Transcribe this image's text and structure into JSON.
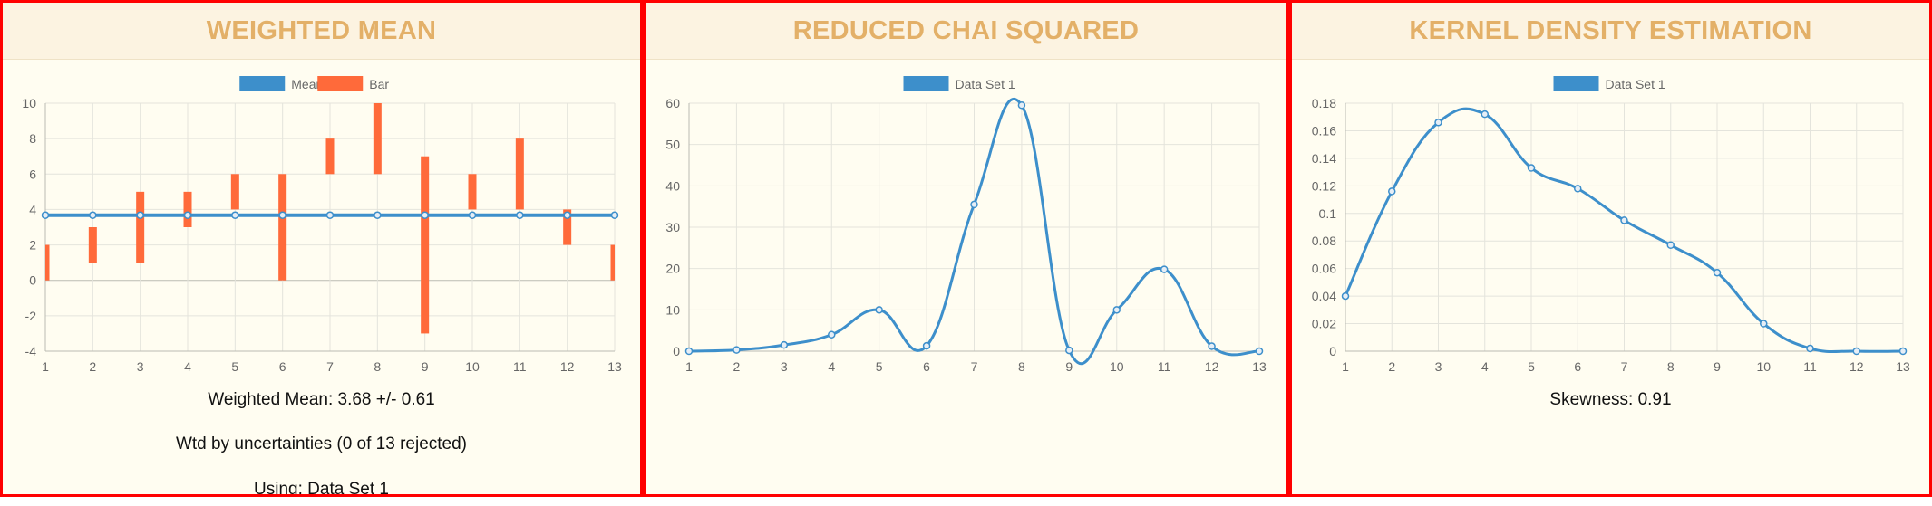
{
  "colors": {
    "line": "#3d8fcb",
    "bar": "#ff6a3a",
    "title": "#e3b068",
    "grid": "#e4e4dc",
    "tick": "#666666",
    "panel_border": "#ff0000"
  },
  "panels": [
    {
      "title": "WEIGHTED MEAN",
      "captions": [
        "Weighted Mean: 3.68 +/- 0.61",
        "Wtd by uncertainties (0 of 13 rejected)",
        "Using: Data Set 1"
      ]
    },
    {
      "title": "REDUCED CHAI SQUARED",
      "captions": []
    },
    {
      "title": "KERNEL DENSITY ESTIMATION",
      "captions": [
        "Skewness: 0.91"
      ]
    }
  ],
  "chart_data": [
    {
      "type": "bar",
      "legend": [
        "Mean",
        "Bar"
      ],
      "legend_position": "top",
      "grid": true,
      "categories": [
        "1",
        "2",
        "3",
        "4",
        "5",
        "6",
        "7",
        "8",
        "9",
        "10",
        "11",
        "12",
        "13"
      ],
      "ylim": [
        -4,
        10
      ],
      "yticks": [
        "10",
        "8",
        "6",
        "4",
        "2",
        "0",
        "-2",
        "-4"
      ],
      "series": [
        {
          "name": "Mean",
          "type": "line",
          "values": [
            3.68,
            3.68,
            3.68,
            3.68,
            3.68,
            3.68,
            3.68,
            3.68,
            3.68,
            3.68,
            3.68,
            3.68,
            3.68
          ]
        },
        {
          "name": "Bar",
          "type": "floating-bar",
          "ranges": [
            [
              0,
              2
            ],
            [
              1,
              3
            ],
            [
              1,
              5
            ],
            [
              3,
              5
            ],
            [
              4,
              6
            ],
            [
              0,
              6
            ],
            [
              6,
              8
            ],
            [
              6,
              10
            ],
            [
              -3,
              7
            ],
            [
              4,
              6
            ],
            [
              4,
              8
            ],
            [
              2,
              4
            ],
            [
              0,
              2
            ]
          ]
        }
      ]
    },
    {
      "type": "line",
      "legend": [
        "Data Set 1"
      ],
      "legend_position": "top",
      "grid": true,
      "categories": [
        "1",
        "2",
        "3",
        "4",
        "5",
        "6",
        "7",
        "8",
        "9",
        "10",
        "11",
        "12",
        "13"
      ],
      "ylim": [
        0,
        60
      ],
      "yticks": [
        "60",
        "50",
        "40",
        "30",
        "20",
        "10",
        "0"
      ],
      "series": [
        {
          "name": "Data Set 1",
          "values": [
            0,
            0.3,
            1.5,
            4,
            10,
            1.3,
            35.5,
            59.5,
            0.2,
            10,
            19.8,
            1.2,
            0
          ]
        }
      ]
    },
    {
      "type": "line",
      "legend": [
        "Data Set 1"
      ],
      "legend_position": "top",
      "grid": true,
      "categories": [
        "1",
        "2",
        "3",
        "4",
        "5",
        "6",
        "7",
        "8",
        "9",
        "10",
        "11",
        "12",
        "13"
      ],
      "ylim": [
        0,
        0.18
      ],
      "yticks": [
        "0.18",
        "0.16",
        "0.14",
        "0.12",
        "0.1",
        "0.08",
        "0.06",
        "0.04",
        "0.02",
        "0"
      ],
      "series": [
        {
          "name": "Data Set 1",
          "values": [
            0.04,
            0.116,
            0.166,
            0.172,
            0.133,
            0.118,
            0.095,
            0.077,
            0.057,
            0.02,
            0.002,
            0.0,
            0.0
          ]
        }
      ]
    }
  ]
}
